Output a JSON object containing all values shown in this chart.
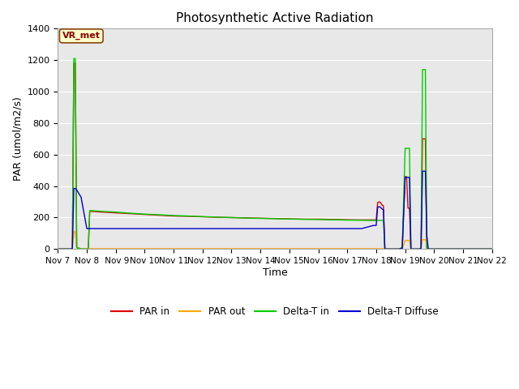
{
  "title": "Photosynthetic Active Radiation",
  "ylabel": "PAR (umol/m2/s)",
  "xlabel": "Time",
  "annotation_text": "VR_met",
  "ylim": [
    0,
    1400
  ],
  "plot_bg": "#e8e8e8",
  "fig_bg": "#ffffff",
  "series": {
    "PAR_in": {
      "color": "#dd0000",
      "label": "PAR in",
      "x": [
        7.0,
        7.45,
        7.5,
        7.55,
        7.6,
        7.65,
        7.7,
        7.75,
        7.8,
        8.0,
        8.05,
        8.1,
        8.5,
        9.0,
        9.5,
        10.0,
        10.5,
        11.0,
        11.5,
        12.0,
        12.5,
        13.0,
        13.5,
        14.0,
        14.5,
        15.0,
        15.5,
        16.0,
        16.5,
        17.0,
        17.5,
        17.9,
        18.0,
        18.05,
        18.1,
        18.15,
        18.2,
        18.25,
        18.3,
        18.5,
        18.6,
        18.7,
        18.8,
        18.85,
        18.9,
        19.0,
        19.05,
        19.1,
        19.15,
        19.2,
        19.3,
        19.5,
        19.55,
        19.6,
        19.65,
        19.7,
        19.75,
        19.8,
        20.0,
        20.1,
        20.15,
        20.2,
        20.25,
        20.3,
        20.5,
        20.55,
        20.6,
        20.65,
        20.7,
        20.75,
        20.8,
        21.0,
        21.1,
        21.2,
        21.3,
        21.5,
        22.0
      ],
      "y": [
        0,
        0,
        5,
        1180,
        1180,
        10,
        5,
        5,
        0,
        0,
        5,
        240,
        235,
        230,
        225,
        220,
        215,
        210,
        208,
        205,
        202,
        200,
        198,
        196,
        194,
        192,
        190,
        190,
        188,
        186,
        185,
        185,
        185,
        295,
        300,
        295,
        280,
        275,
        0,
        0,
        0,
        0,
        0,
        5,
        5,
        460,
        460,
        260,
        260,
        0,
        0,
        0,
        5,
        700,
        700,
        700,
        5,
        0,
        0,
        0,
        0,
        0,
        0,
        0,
        0,
        0,
        0,
        0,
        0,
        0,
        0,
        0,
        0,
        0,
        0,
        0,
        0
      ]
    },
    "PAR_out": {
      "color": "#ffa500",
      "label": "PAR out",
      "x": [
        7.0,
        7.45,
        7.5,
        7.55,
        7.6,
        7.65,
        7.7,
        7.75,
        7.8,
        8.0,
        8.05,
        8.1,
        8.5,
        9.0,
        9.5,
        10.0,
        10.5,
        11.0,
        11.5,
        12.0,
        12.5,
        13.0,
        13.5,
        14.0,
        14.5,
        15.0,
        15.5,
        16.0,
        16.5,
        17.0,
        17.5,
        17.9,
        18.0,
        18.05,
        18.1,
        18.15,
        18.2,
        18.25,
        18.3,
        18.5,
        18.6,
        18.7,
        18.8,
        18.85,
        18.9,
        19.0,
        19.05,
        19.1,
        19.15,
        19.2,
        19.3,
        19.5,
        19.55,
        19.6,
        19.65,
        19.7,
        19.75,
        19.8,
        20.0,
        20.1,
        20.15,
        20.2,
        20.25,
        20.3,
        20.5,
        20.55,
        20.6,
        20.65,
        20.7,
        20.75,
        20.8,
        21.0,
        21.1,
        21.2,
        21.3,
        21.5,
        22.0
      ],
      "y": [
        0,
        0,
        2,
        110,
        110,
        5,
        2,
        2,
        0,
        0,
        2,
        2,
        2,
        2,
        2,
        2,
        2,
        2,
        2,
        2,
        2,
        2,
        2,
        2,
        2,
        2,
        2,
        2,
        2,
        2,
        2,
        2,
        2,
        2,
        2,
        2,
        2,
        2,
        0,
        0,
        0,
        0,
        0,
        2,
        2,
        55,
        55,
        55,
        55,
        0,
        0,
        0,
        2,
        60,
        60,
        60,
        30,
        0,
        0,
        0,
        0,
        0,
        0,
        0,
        0,
        0,
        0,
        0,
        0,
        0,
        0,
        0,
        0,
        0,
        0,
        0,
        0
      ]
    },
    "Delta_T_in": {
      "color": "#00cc00",
      "label": "Delta-T in",
      "x": [
        7.0,
        7.45,
        7.5,
        7.55,
        7.6,
        7.65,
        7.7,
        7.75,
        7.8,
        8.0,
        8.05,
        8.1,
        8.5,
        9.0,
        9.5,
        10.0,
        10.5,
        11.0,
        11.5,
        12.0,
        12.5,
        13.0,
        13.5,
        14.0,
        14.5,
        15.0,
        15.5,
        16.0,
        16.5,
        17.0,
        17.5,
        17.9,
        18.0,
        18.05,
        18.1,
        18.15,
        18.2,
        18.25,
        18.3,
        18.5,
        18.6,
        18.7,
        18.8,
        18.85,
        18.9,
        19.0,
        19.05,
        19.1,
        19.15,
        19.2,
        19.3,
        19.5,
        19.55,
        19.6,
        19.65,
        19.7,
        19.75,
        19.8,
        20.0,
        20.1,
        20.15,
        20.2,
        20.25,
        20.3,
        20.5,
        20.55,
        20.6,
        20.65,
        20.7,
        20.75,
        20.8,
        21.0,
        21.1,
        21.2,
        21.3,
        21.5,
        22.0
      ],
      "y": [
        0,
        0,
        5,
        1210,
        1210,
        10,
        5,
        5,
        0,
        0,
        5,
        245,
        240,
        235,
        228,
        222,
        218,
        213,
        210,
        206,
        203,
        200,
        197,
        195,
        193,
        191,
        189,
        188,
        186,
        184,
        183,
        182,
        182,
        182,
        182,
        182,
        182,
        182,
        0,
        0,
        0,
        0,
        0,
        5,
        5,
        640,
        640,
        640,
        640,
        0,
        0,
        0,
        5,
        1140,
        1140,
        1140,
        5,
        0,
        0,
        0,
        0,
        0,
        0,
        0,
        0,
        0,
        0,
        0,
        0,
        0,
        0,
        0,
        0,
        0,
        0,
        0,
        0
      ]
    },
    "Delta_T_Diffuse": {
      "color": "#0000cc",
      "label": "Delta-T Diffuse",
      "x": [
        7.0,
        7.45,
        7.5,
        7.55,
        7.6,
        7.65,
        7.7,
        7.75,
        7.8,
        8.0,
        8.05,
        8.1,
        8.5,
        9.0,
        9.5,
        10.0,
        10.5,
        11.0,
        11.5,
        12.0,
        12.5,
        13.0,
        13.5,
        14.0,
        14.5,
        15.0,
        15.5,
        16.0,
        16.5,
        17.0,
        17.5,
        17.9,
        18.0,
        18.05,
        18.1,
        18.15,
        18.2,
        18.25,
        18.3,
        18.5,
        18.6,
        18.7,
        18.8,
        18.85,
        18.9,
        19.0,
        19.05,
        19.1,
        19.15,
        19.2,
        19.3,
        19.5,
        19.55,
        19.6,
        19.65,
        19.7,
        19.75,
        19.8,
        20.0,
        20.1,
        20.15,
        20.2,
        20.25,
        20.3,
        20.5,
        20.55,
        20.6,
        20.65,
        20.7,
        20.75,
        20.8,
        21.0,
        21.1,
        21.2,
        21.3,
        21.5,
        22.0
      ],
      "y": [
        0,
        0,
        5,
        385,
        385,
        375,
        360,
        345,
        330,
        130,
        130,
        130,
        130,
        130,
        130,
        130,
        130,
        130,
        130,
        130,
        130,
        130,
        130,
        130,
        130,
        130,
        130,
        130,
        130,
        130,
        130,
        150,
        150,
        265,
        270,
        265,
        255,
        250,
        0,
        0,
        0,
        0,
        0,
        5,
        5,
        455,
        455,
        455,
        455,
        0,
        0,
        0,
        5,
        495,
        495,
        495,
        85,
        0,
        0,
        0,
        0,
        0,
        0,
        0,
        0,
        0,
        0,
        0,
        0,
        0,
        0,
        0,
        0,
        0,
        0,
        0,
        0
      ]
    }
  },
  "xticks": [
    7,
    8,
    9,
    10,
    11,
    12,
    13,
    14,
    15,
    16,
    17,
    18,
    19,
    20,
    21,
    22
  ],
  "xtick_labels": [
    "Nov 7",
    "Nov 8",
    " Nov 9",
    "Nov 10",
    "Nov 11",
    "Nov 12",
    "Nov 13",
    "Nov 14",
    "Nov 15",
    "Nov 16",
    "Nov 17",
    "Nov 18",
    "Nov 19",
    "Nov 20",
    "Nov 21",
    "Nov 22"
  ],
  "yticks": [
    0,
    200,
    400,
    600,
    800,
    1000,
    1200,
    1400
  ]
}
